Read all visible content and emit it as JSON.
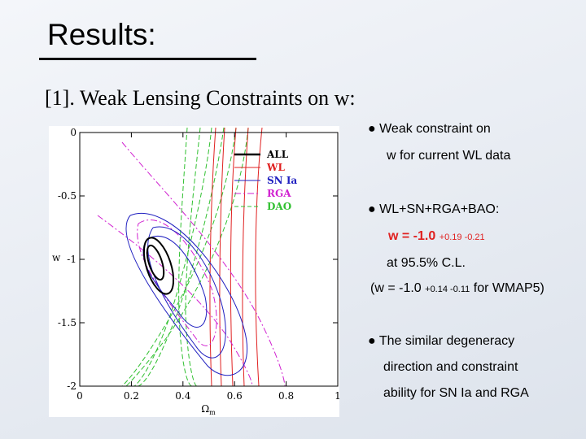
{
  "header": {
    "title": "Results:",
    "subtitle": "[1]. Weak Lensing Constraints on w:"
  },
  "figure": {
    "xlabel": "Ω",
    "xlabel_sub": "m",
    "ylabel": "w",
    "xlim": [
      0,
      1
    ],
    "ylim": [
      -2,
      0
    ],
    "xticks": [
      0,
      0.2,
      0.4,
      0.6,
      0.8,
      1
    ],
    "yticks": [
      0,
      -0.5,
      -1,
      -1.5,
      -2
    ],
    "legend": [
      {
        "name": "ALL",
        "color": "#000000"
      },
      {
        "name": "WL",
        "color": "#e02020"
      },
      {
        "name": "SN Ia",
        "color": "#2020c0"
      },
      {
        "name": "RGA",
        "color": "#d020d0"
      },
      {
        "name": "DAO",
        "color": "#30c030"
      }
    ]
  },
  "bullets": [
    {
      "lines": [
        "Weak constraint on",
        "w for current WL data"
      ]
    },
    {
      "lines": [
        "WL+SN+RGA+BAO:"
      ],
      "result": {
        "text": "w = -1.0",
        "errors": "+0.19 -0.21"
      },
      "cl": "at 95.5% C.L.",
      "wmap": {
        "before": "(w = -1.0",
        "errors": "+0.14 -0.11",
        "after": "for WMAP5)"
      }
    },
    {
      "lines": [
        "The similar degeneracy",
        "direction and  constraint",
        "ability for  SN Ia and RGA"
      ]
    }
  ]
}
